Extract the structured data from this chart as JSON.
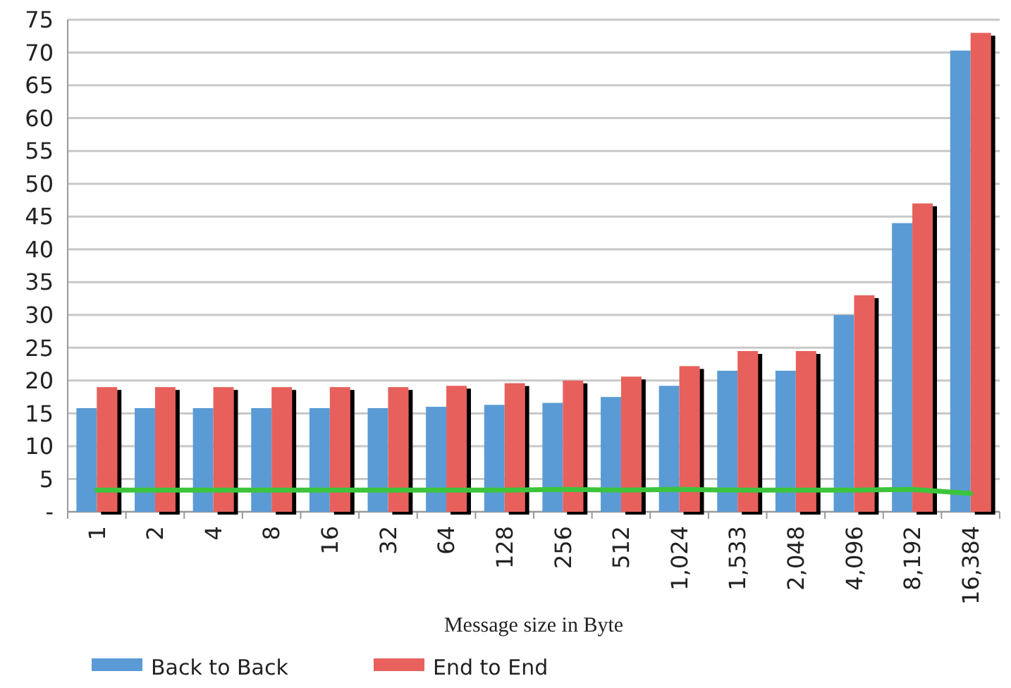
{
  "chart_data": {
    "type": "bar",
    "xlabel": "Message size in Byte",
    "categories": [
      "1",
      "2",
      "4",
      "8",
      "16",
      "32",
      "64",
      "128",
      "256",
      "512",
      "1,024",
      "1,533",
      "2,048",
      "4,096",
      "8,192",
      "16,384"
    ],
    "series": [
      {
        "name": "Back to Back",
        "color": "#5b9bd5",
        "values": [
          15.8,
          15.8,
          15.8,
          15.8,
          15.8,
          15.8,
          16,
          16.3,
          16.6,
          17.5,
          19.2,
          21.5,
          21.5,
          30,
          44,
          70.3
        ]
      },
      {
        "name": "End to End",
        "color": "#e8615c",
        "values": [
          19,
          19,
          19,
          19,
          19,
          19,
          19.2,
          19.6,
          20,
          20.6,
          22.2,
          24.5,
          24.5,
          33,
          47,
          73
        ]
      },
      {
        "type": "line",
        "color": "#3cc43c",
        "values": [
          3.3,
          3.3,
          3.3,
          3.3,
          3.3,
          3.3,
          3.3,
          3.3,
          3.4,
          3.3,
          3.4,
          3.3,
          3.3,
          3.3,
          3.4,
          2.8
        ]
      }
    ],
    "ylim": [
      0,
      75
    ],
    "yticks": [
      {
        "value": 0,
        "label": "-"
      },
      5,
      10,
      15,
      20,
      25,
      30,
      35,
      40,
      45,
      50,
      55,
      60,
      65,
      70,
      75
    ],
    "grid": "y",
    "legend": "bottom left"
  }
}
